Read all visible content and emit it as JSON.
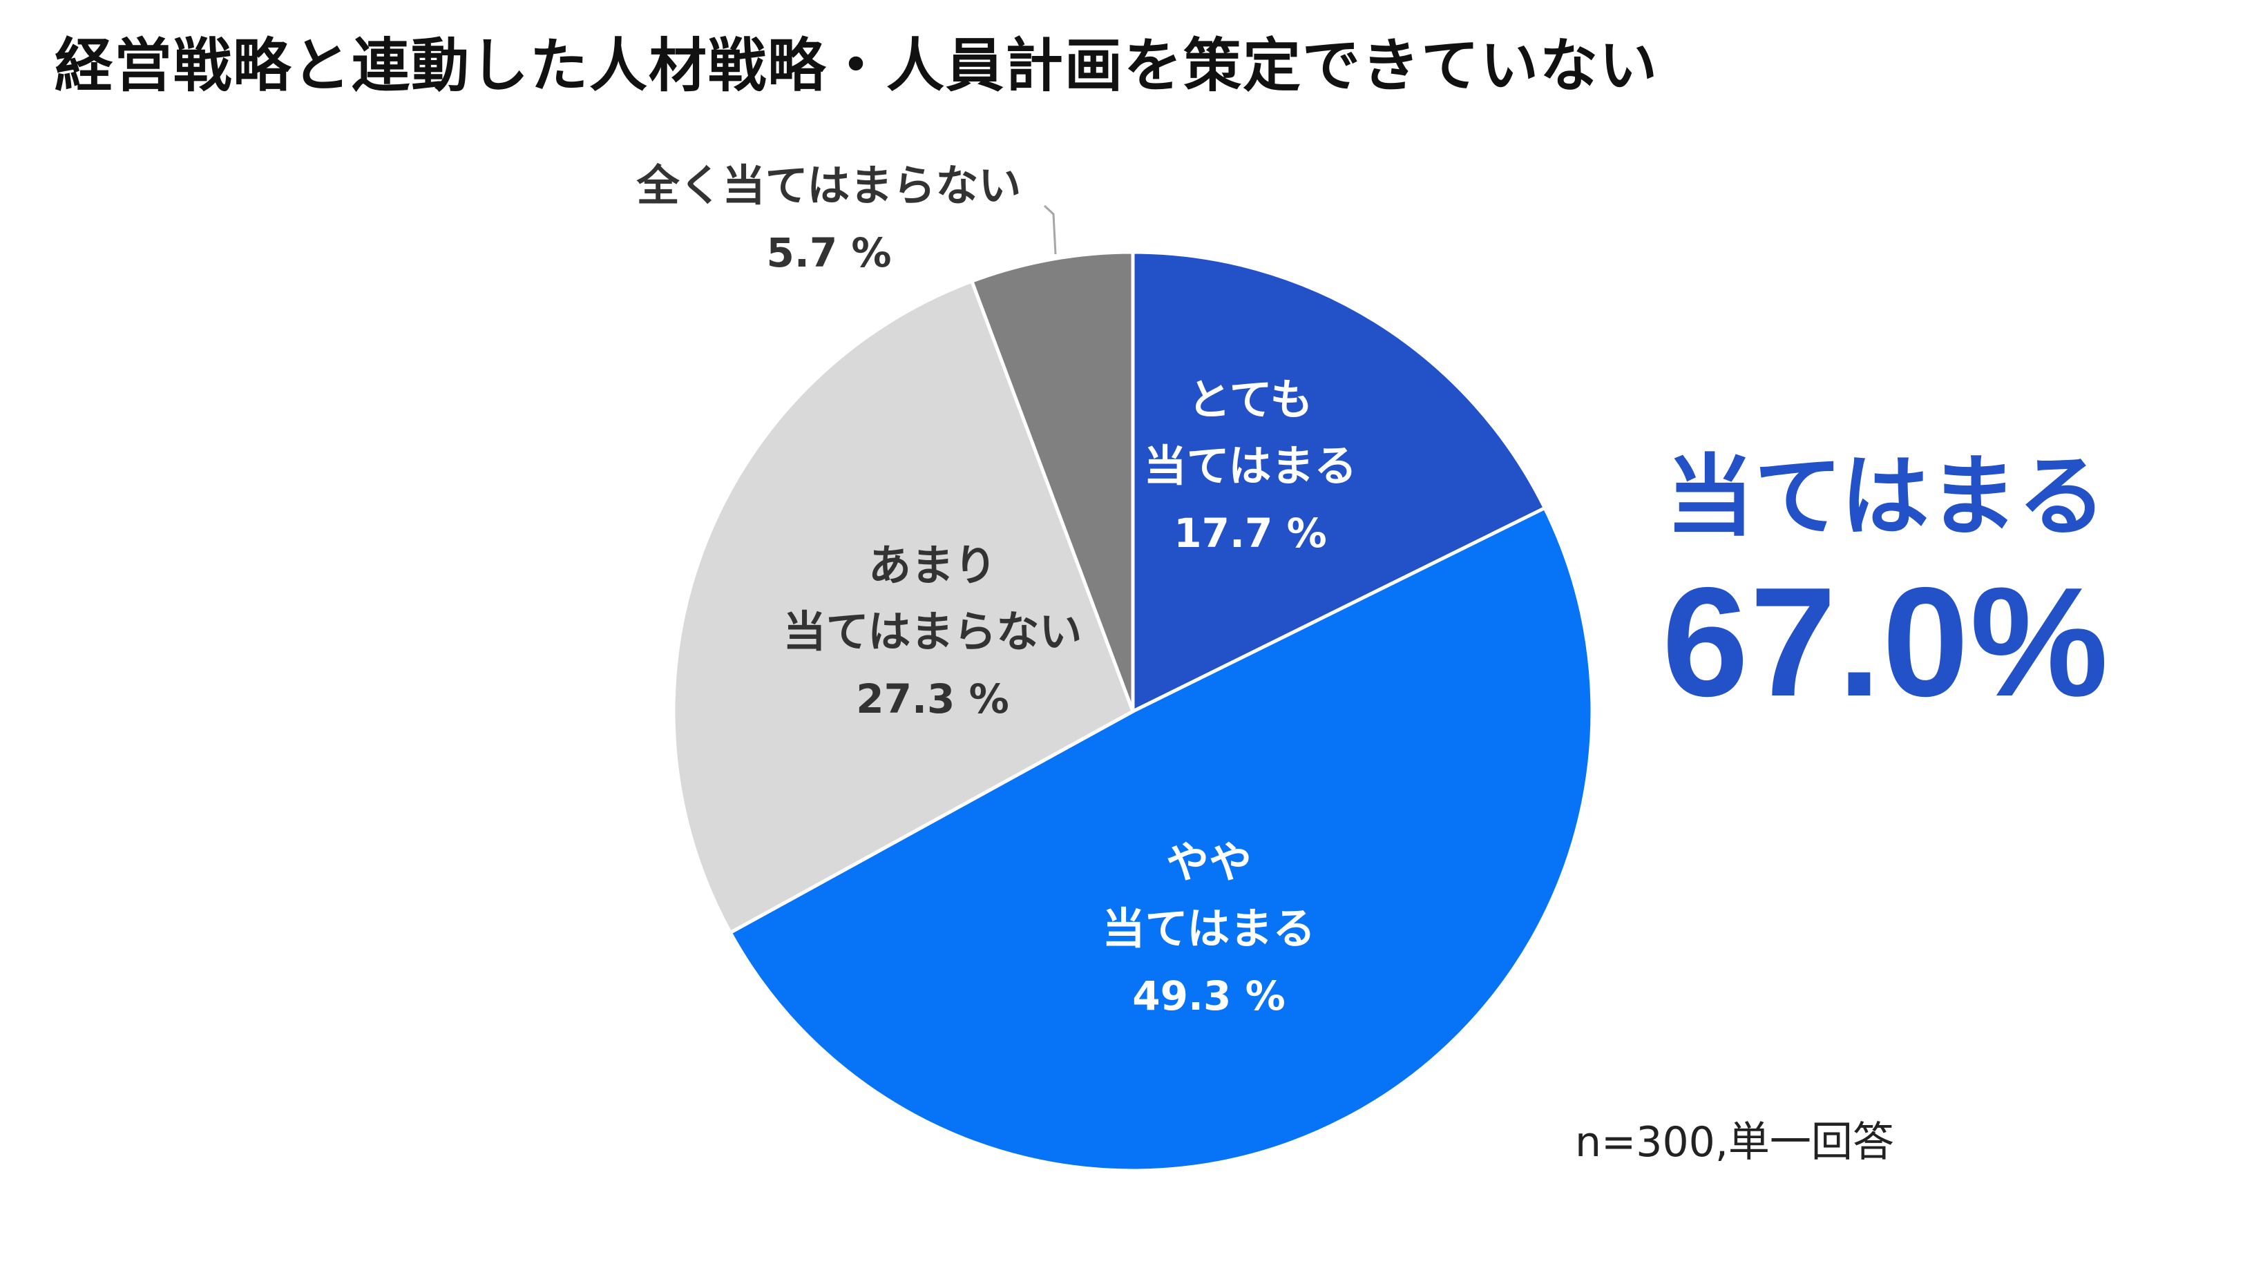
{
  "chart_data": {
    "type": "pie",
    "title": "経営戦略と連動した人材戦略・人員計画を策定できていない",
    "slices": [
      {
        "label_lines": [
          "とても",
          "当てはまる"
        ],
        "value": 17.7,
        "value_label": "17.7 %",
        "color": "#2251c8",
        "text_color": "#ffffff"
      },
      {
        "label_lines": [
          "やや",
          "当てはまる"
        ],
        "value": 49.3,
        "value_label": "49.3 %",
        "color": "#0774f7",
        "text_color": "#ffffff"
      },
      {
        "label_lines": [
          "あまり",
          "当てはまらない"
        ],
        "value": 27.3,
        "value_label": "27.3 %",
        "color": "#d9d9d9",
        "text_color": "#333333"
      },
      {
        "label_lines": [
          "全く当てはまらない"
        ],
        "value": 5.7,
        "value_label": "5.7 %",
        "color": "#808080",
        "text_color": "#333333"
      }
    ],
    "start_angle": "12 o'clock",
    "direction": "clockwise"
  },
  "summary": {
    "label": "当てはまる",
    "value": "67.0%",
    "color": "#2251c8"
  },
  "note": "n=300,単一回答"
}
